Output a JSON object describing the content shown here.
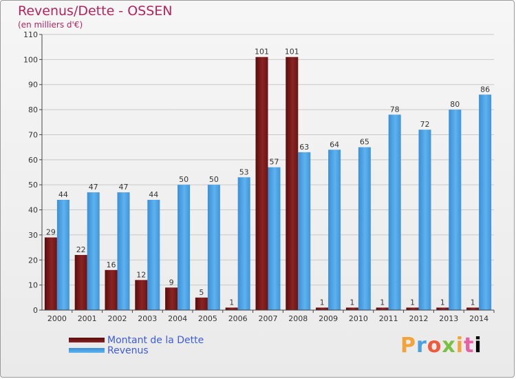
{
  "title": "Revenus/Dette - OSSEN",
  "subtitle": "(en milliers d'€)",
  "logo_text": "Proxiti",
  "chart_data": {
    "type": "bar",
    "categories": [
      "2000",
      "2001",
      "2002",
      "2003",
      "2004",
      "2005",
      "2006",
      "2007",
      "2008",
      "2009",
      "2010",
      "2011",
      "2012",
      "2013",
      "2014"
    ],
    "series": [
      {
        "name": "Montant de la Dette",
        "color": "#7a1a1a",
        "values": [
          29,
          22,
          16,
          12,
          9,
          5,
          1,
          101,
          101,
          1,
          1,
          1,
          1,
          1,
          1
        ]
      },
      {
        "name": "Revenus",
        "color": "#4aa3e6",
        "values": [
          44,
          47,
          47,
          44,
          50,
          50,
          53,
          57,
          63,
          64,
          65,
          78,
          72,
          80,
          86
        ]
      }
    ],
    "ylim": [
      0,
      110
    ],
    "yticks": [
      0,
      10,
      20,
      30,
      40,
      50,
      60,
      70,
      80,
      90,
      100,
      110
    ],
    "grid": true
  }
}
